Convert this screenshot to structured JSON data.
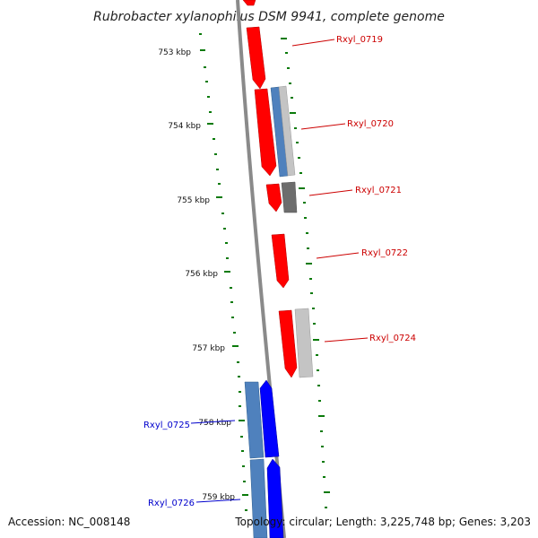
{
  "title": "Rubrobacter xylanophilus DSM 9941, complete genome",
  "accession": "Accession: NC_008148",
  "topology": "Topology: circular; Length: 3,225,748 bp; Genes: 3,203",
  "colors": {
    "forward_gene": "#ff0000",
    "reverse_gene": "#0000ff",
    "forward_label": "#cc0000",
    "reverse_label": "#0000cc",
    "cog_blue": "#4f81bd",
    "cog_grey": "#bbbbbb",
    "tick": "#0a7a0a",
    "backbone": "#888888"
  },
  "kbp_ticks": [
    {
      "label": "753 kbp"
    },
    {
      "label": "754 kbp"
    },
    {
      "label": "755 kbp"
    },
    {
      "label": "756 kbp"
    },
    {
      "label": "757 kbp"
    },
    {
      "label": "758 kbp"
    },
    {
      "label": "759 kbp"
    }
  ],
  "gene_labels": [
    {
      "text": "Rxyl_0719",
      "strand": "forward"
    },
    {
      "text": "Rxyl_0720",
      "strand": "forward"
    },
    {
      "text": "Rxyl_0721",
      "strand": "forward"
    },
    {
      "text": "Rxyl_0722",
      "strand": "forward"
    },
    {
      "text": "Rxyl_0724",
      "strand": "forward"
    },
    {
      "text": "Rxyl_0725",
      "strand": "reverse"
    },
    {
      "text": "Rxyl_0726",
      "strand": "reverse"
    }
  ]
}
